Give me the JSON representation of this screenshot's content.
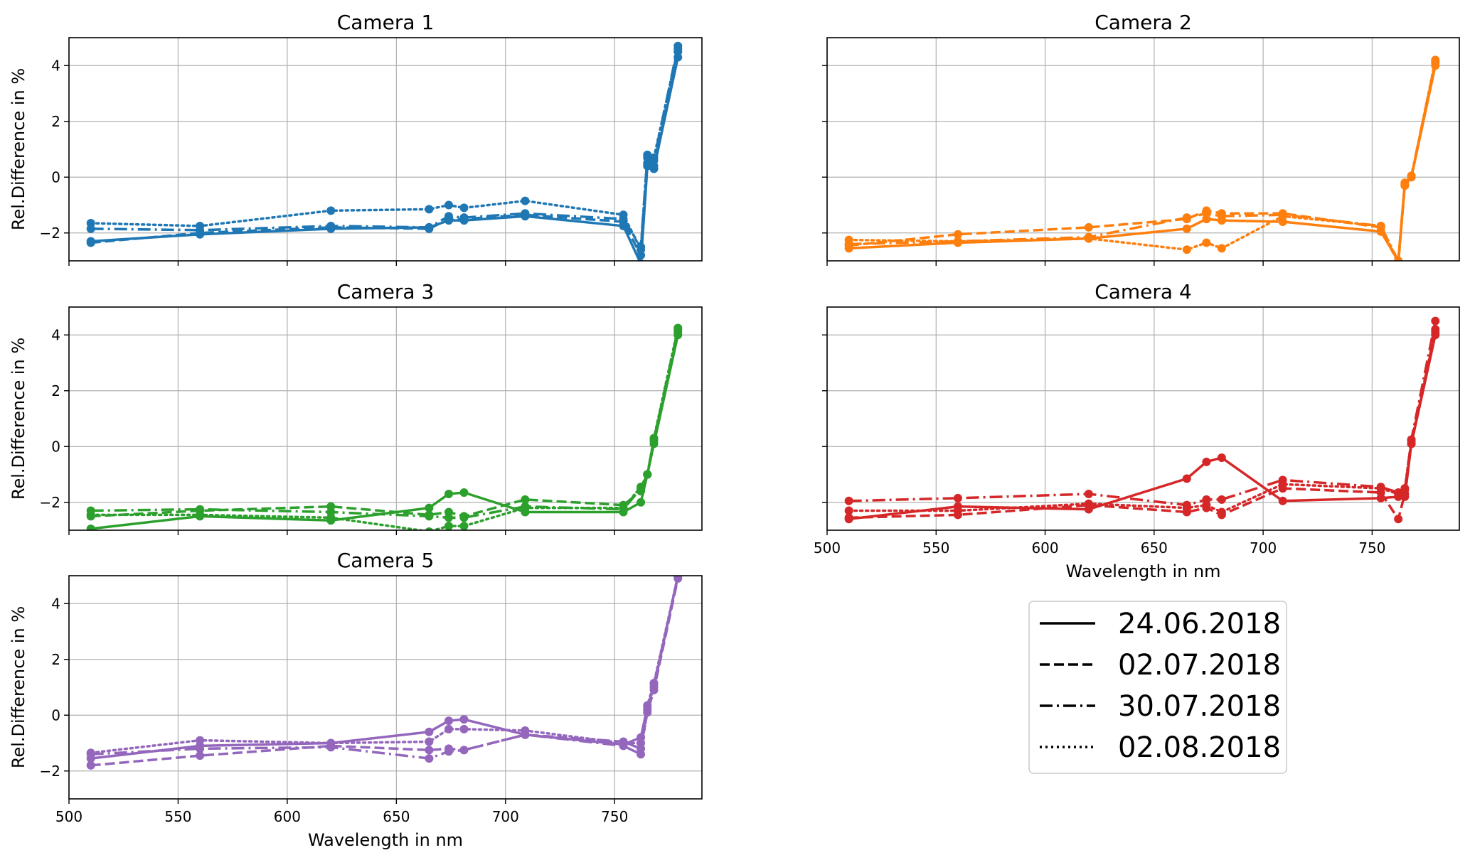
{
  "chart_data": {
    "type": "line",
    "shared_x_ticks": [
      500,
      550,
      600,
      650,
      700,
      750
    ],
    "shared_y_ticks": [
      -2,
      0,
      2,
      4
    ],
    "xlim": [
      500,
      790
    ],
    "ylim": [
      -3,
      5
    ],
    "grid": true,
    "linestyles": [
      "solid",
      "dashed",
      "dashdot",
      "dotted"
    ],
    "legend": {
      "placement": "lower-right",
      "entries": [
        "24.06.2018",
        "02.07.2018",
        "30.07.2018",
        "02.08.2018"
      ]
    },
    "x": [
      510,
      560,
      620,
      665,
      674,
      681,
      709,
      754,
      762,
      765,
      768,
      779
    ],
    "panels": [
      {
        "title": "Camera 1",
        "color": "#1f77b4",
        "ylabel": "Rel.Difference in %",
        "xlabel": "",
        "series": [
          {
            "linestyle": "solid",
            "values": [
              -2.3,
              -2.05,
              -1.85,
              -1.8,
              -1.55,
              -1.55,
              -1.4,
              -1.75,
              -3.1,
              0.4,
              0.3,
              4.3
            ]
          },
          {
            "linestyle": "dashed",
            "values": [
              -2.35,
              -2.0,
              -1.8,
              -1.85,
              -1.5,
              -1.5,
              -1.35,
              -1.6,
              -2.8,
              0.5,
              0.4,
              4.5
            ]
          },
          {
            "linestyle": "dashdot",
            "values": [
              -1.85,
              -1.9,
              -1.75,
              -1.8,
              -1.4,
              -1.45,
              -1.3,
              -1.5,
              -2.5,
              0.7,
              0.6,
              4.7
            ]
          },
          {
            "linestyle": "dotted",
            "values": [
              -1.65,
              -1.75,
              -1.2,
              -1.15,
              -1.0,
              -1.1,
              -0.85,
              -1.35,
              -2.6,
              0.8,
              0.7,
              4.6
            ]
          }
        ]
      },
      {
        "title": "Camera 2",
        "color": "#ff7f0e",
        "ylabel": "",
        "xlabel": "",
        "series": [
          {
            "linestyle": "solid",
            "values": [
              -2.55,
              -2.35,
              -2.2,
              -1.85,
              -1.5,
              -1.55,
              -1.6,
              -1.95,
              -3.0,
              -0.2,
              0.0,
              4.0
            ]
          },
          {
            "linestyle": "dashed",
            "values": [
              -2.45,
              -2.05,
              -1.8,
              -1.5,
              -1.2,
              -1.3,
              -1.3,
              -1.8,
              -3.1,
              -0.3,
              0.0,
              4.1
            ]
          },
          {
            "linestyle": "dashdot",
            "values": [
              -2.4,
              -2.3,
              -2.15,
              -1.45,
              -1.3,
              -1.4,
              -1.35,
              -1.75,
              -3.0,
              -0.25,
              0.05,
              4.15
            ]
          },
          {
            "linestyle": "dotted",
            "values": [
              -2.25,
              -2.3,
              -2.2,
              -2.6,
              -2.35,
              -2.55,
              -1.4,
              -1.75,
              -3.05,
              -0.3,
              0.0,
              4.2
            ]
          }
        ]
      },
      {
        "title": "Camera 3",
        "color": "#2ca02c",
        "ylabel": "Rel.Difference in %",
        "xlabel": "",
        "series": [
          {
            "linestyle": "solid",
            "values": [
              -2.95,
              -2.5,
              -2.65,
              -2.2,
              -1.7,
              -1.65,
              -2.35,
              -2.35,
              -2.0,
              -1.0,
              0.1,
              4.0
            ]
          },
          {
            "linestyle": "dashed",
            "values": [
              -2.5,
              -2.3,
              -2.15,
              -2.45,
              -2.35,
              -2.5,
              -1.9,
              -2.1,
              -1.6,
              -1.0,
              0.2,
              4.1
            ]
          },
          {
            "linestyle": "dashdot",
            "values": [
              -2.3,
              -2.25,
              -2.35,
              -2.5,
              -2.55,
              -2.55,
              -2.15,
              -2.25,
              -1.5,
              -1.0,
              0.25,
              4.2
            ]
          },
          {
            "linestyle": "dotted",
            "values": [
              -2.45,
              -2.45,
              -2.55,
              -3.05,
              -2.85,
              -2.85,
              -2.2,
              -2.2,
              -1.45,
              -1.0,
              0.3,
              4.25
            ]
          }
        ]
      },
      {
        "title": "Camera 4",
        "color": "#d62728",
        "ylabel": "",
        "xlabel": "Wavelength in nm",
        "series": [
          {
            "linestyle": "solid",
            "values": [
              -2.6,
              -2.15,
              -2.25,
              -1.15,
              -0.55,
              -0.4,
              -1.95,
              -1.85,
              -1.8,
              -1.8,
              0.1,
              4.0
            ]
          },
          {
            "linestyle": "dashed",
            "values": [
              -2.55,
              -2.45,
              -2.1,
              -2.35,
              -2.2,
              -2.45,
              -1.5,
              -1.65,
              -2.6,
              -1.7,
              0.1,
              4.2
            ]
          },
          {
            "linestyle": "dashdot",
            "values": [
              -1.95,
              -1.85,
              -1.7,
              -2.1,
              -1.9,
              -1.9,
              -1.2,
              -1.45,
              -1.65,
              -1.55,
              0.25,
              4.5
            ]
          },
          {
            "linestyle": "dotted",
            "values": [
              -2.3,
              -2.3,
              -2.05,
              -2.2,
              -2.1,
              -2.35,
              -1.35,
              -1.5,
              -1.7,
              -1.5,
              0.2,
              4.1
            ]
          }
        ]
      },
      {
        "title": "Camera 5",
        "color": "#9467bd",
        "ylabel": "Rel.Difference in %",
        "xlabel": "Wavelength in nm",
        "series": [
          {
            "linestyle": "solid",
            "values": [
              -1.55,
              -1.1,
              -1.0,
              -0.6,
              -0.2,
              -0.15,
              -0.7,
              -1.05,
              -0.8,
              0.3,
              1.0,
              5.0
            ]
          },
          {
            "linestyle": "dashed",
            "values": [
              -1.8,
              -1.45,
              -1.1,
              -1.25,
              -1.2,
              -1.25,
              -0.7,
              -0.95,
              -1.2,
              0.1,
              0.9,
              4.9
            ]
          },
          {
            "linestyle": "dashdot",
            "values": [
              -1.4,
              -1.2,
              -1.15,
              -1.55,
              -1.3,
              -1.25,
              -0.7,
              -1.1,
              -1.4,
              0.2,
              1.1,
              4.95
            ]
          },
          {
            "linestyle": "dotted",
            "values": [
              -1.35,
              -0.9,
              -1.0,
              -0.95,
              -0.5,
              -0.5,
              -0.55,
              -1.0,
              -1.0,
              0.35,
              1.15,
              5.0
            ]
          }
        ]
      }
    ]
  }
}
